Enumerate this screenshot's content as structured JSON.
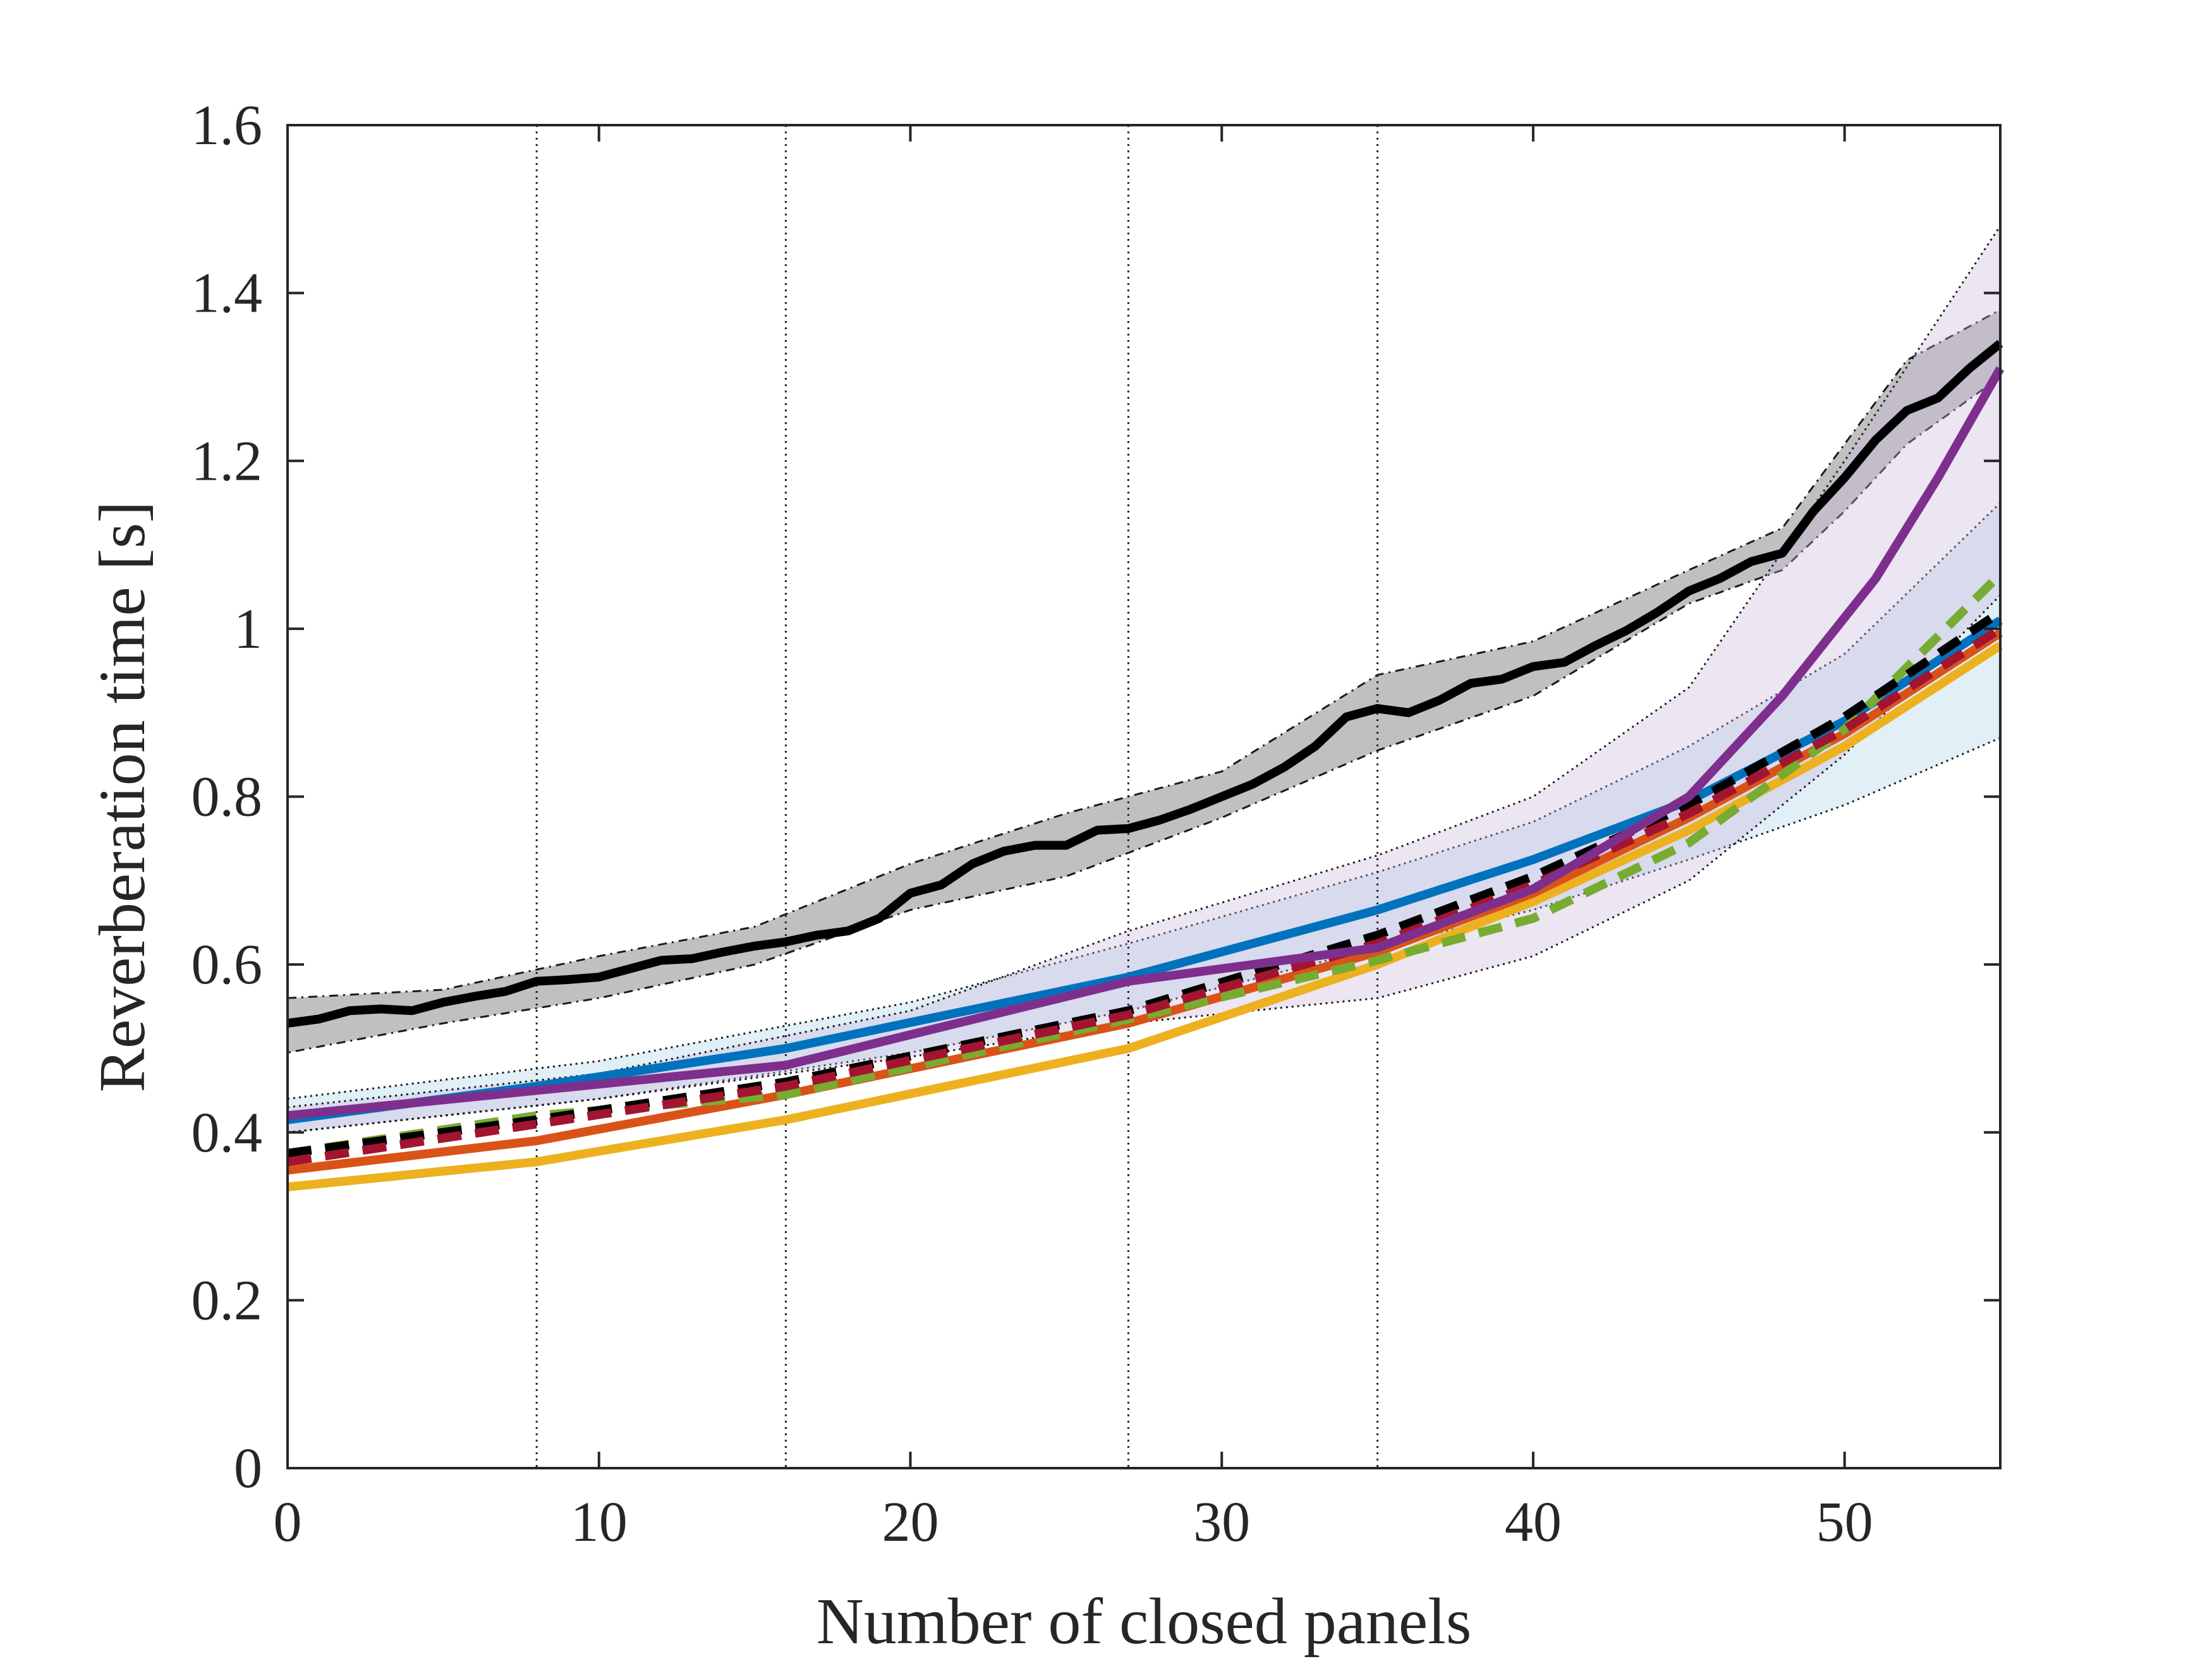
{
  "chart_data": {
    "type": "line",
    "title": "",
    "xlabel": "Number of closed panels",
    "ylabel": "Reverberation time [s]",
    "xlim": [
      0,
      55
    ],
    "ylim": [
      0,
      1.6
    ],
    "xticks": [
      0,
      10,
      20,
      30,
      40,
      50
    ],
    "yticks": [
      0,
      0.2,
      0.4,
      0.6,
      0.8,
      1,
      1.2,
      1.4,
      1.6
    ],
    "xtick_labels": [
      "0",
      "10",
      "20",
      "30",
      "40",
      "50"
    ],
    "ytick_labels": [
      "0",
      "0.2",
      "0.4",
      "0.6",
      "0.8",
      "1",
      "1.2",
      "1.4",
      "1.6"
    ],
    "vertical_reference_lines": [
      8,
      16,
      27,
      35
    ],
    "grid": false,
    "legend": "none",
    "bands": [
      {
        "color": "#8c8c8c",
        "opacity": 0.55,
        "x": [
          0,
          5,
          10,
          15,
          20,
          25,
          30,
          35,
          40,
          45,
          48,
          50,
          52,
          55
        ],
        "upper": [
          0.56,
          0.57,
          0.61,
          0.645,
          0.72,
          0.78,
          0.83,
          0.945,
          0.985,
          1.07,
          1.12,
          1.22,
          1.32,
          1.38
        ],
        "lower": [
          0.495,
          0.53,
          0.56,
          0.6,
          0.665,
          0.705,
          0.775,
          0.855,
          0.92,
          1.03,
          1.07,
          1.14,
          1.22,
          1.3
        ]
      },
      {
        "color": "#a8d0e8",
        "opacity": 0.35,
        "x": [
          0,
          10,
          20,
          27,
          35,
          40,
          45,
          50,
          55
        ],
        "upper": [
          0.44,
          0.485,
          0.555,
          0.625,
          0.71,
          0.77,
          0.86,
          0.97,
          1.15
        ],
        "lower": [
          0.4,
          0.44,
          0.495,
          0.545,
          0.62,
          0.665,
          0.725,
          0.79,
          0.87
        ]
      },
      {
        "color": "#c8b4da",
        "opacity": 0.35,
        "x": [
          0,
          10,
          20,
          27,
          35,
          40,
          45,
          50,
          55
        ],
        "upper": [
          0.43,
          0.47,
          0.545,
          0.64,
          0.73,
          0.8,
          0.93,
          1.2,
          1.48
        ],
        "lower": [
          0.4,
          0.44,
          0.49,
          0.53,
          0.56,
          0.61,
          0.7,
          0.85,
          1.04
        ]
      }
    ],
    "series": [
      {
        "color": "#000000",
        "style": "solid",
        "width": 14,
        "x": [
          0,
          1,
          2,
          3,
          4,
          5,
          6,
          7,
          8,
          9,
          10,
          11,
          12,
          13,
          14,
          15,
          16,
          17,
          18,
          19,
          20,
          21,
          22,
          23,
          24,
          25,
          26,
          27,
          28,
          29,
          30,
          31,
          32,
          33,
          34,
          35,
          36,
          37,
          38,
          39,
          40,
          41,
          42,
          43,
          44,
          45,
          46,
          47,
          48,
          49,
          50,
          51,
          52,
          53,
          54,
          55
        ],
        "y": [
          0.53,
          0.535,
          0.545,
          0.547,
          0.545,
          0.555,
          0.562,
          0.568,
          0.58,
          0.582,
          0.585,
          0.595,
          0.605,
          0.607,
          0.615,
          0.622,
          0.627,
          0.635,
          0.64,
          0.655,
          0.685,
          0.695,
          0.72,
          0.735,
          0.742,
          0.742,
          0.76,
          0.762,
          0.772,
          0.785,
          0.8,
          0.815,
          0.835,
          0.86,
          0.895,
          0.905,
          0.9,
          0.915,
          0.935,
          0.94,
          0.955,
          0.96,
          0.98,
          0.998,
          1.02,
          1.045,
          1.06,
          1.08,
          1.09,
          1.14,
          1.18,
          1.225,
          1.26,
          1.275,
          1.31,
          1.34
        ]
      },
      {
        "color": "#edb120",
        "style": "solid",
        "width": 14,
        "x": [
          0,
          8,
          16,
          27,
          35,
          40,
          45,
          50,
          55
        ],
        "y": [
          0.335,
          0.365,
          0.415,
          0.5,
          0.6,
          0.675,
          0.76,
          0.86,
          0.98
        ]
      },
      {
        "color": "#d95319",
        "style": "solid",
        "width": 14,
        "x": [
          0,
          8,
          16,
          27,
          35,
          40,
          45,
          50,
          55
        ],
        "y": [
          0.355,
          0.39,
          0.445,
          0.53,
          0.615,
          0.685,
          0.775,
          0.875,
          0.995
        ]
      },
      {
        "color": "#0072bd",
        "style": "solid",
        "width": 14,
        "x": [
          0,
          8,
          16,
          27,
          35,
          40,
          45,
          50,
          55
        ],
        "y": [
          0.415,
          0.455,
          0.5,
          0.585,
          0.665,
          0.725,
          0.795,
          0.89,
          1.01
        ]
      },
      {
        "color": "#77ac30",
        "style": "dashed",
        "width": 14,
        "x": [
          0,
          8,
          16,
          27,
          35,
          40,
          45,
          50,
          55
        ],
        "y": [
          0.375,
          0.42,
          0.445,
          0.535,
          0.605,
          0.655,
          0.745,
          0.88,
          1.065
        ]
      },
      {
        "color": "#000000",
        "style": "dashed",
        "width": 14,
        "x": [
          0,
          8,
          16,
          27,
          35,
          40,
          45,
          50,
          55
        ],
        "y": [
          0.375,
          0.415,
          0.46,
          0.545,
          0.635,
          0.705,
          0.79,
          0.895,
          1.02
        ]
      },
      {
        "color": "#a2142f",
        "style": "dashed",
        "width": 14,
        "x": [
          0,
          8,
          16,
          27,
          35,
          40,
          45,
          50,
          55
        ],
        "y": [
          0.365,
          0.41,
          0.455,
          0.54,
          0.625,
          0.695,
          0.78,
          0.88,
          1.0
        ]
      },
      {
        "color": "#7e2f8e",
        "style": "solid",
        "width": 14,
        "x": [
          0,
          8,
          16,
          27,
          35,
          40,
          45,
          48,
          51,
          53,
          55
        ],
        "y": [
          0.42,
          0.45,
          0.48,
          0.58,
          0.62,
          0.69,
          0.8,
          0.92,
          1.06,
          1.18,
          1.31
        ]
      }
    ]
  }
}
